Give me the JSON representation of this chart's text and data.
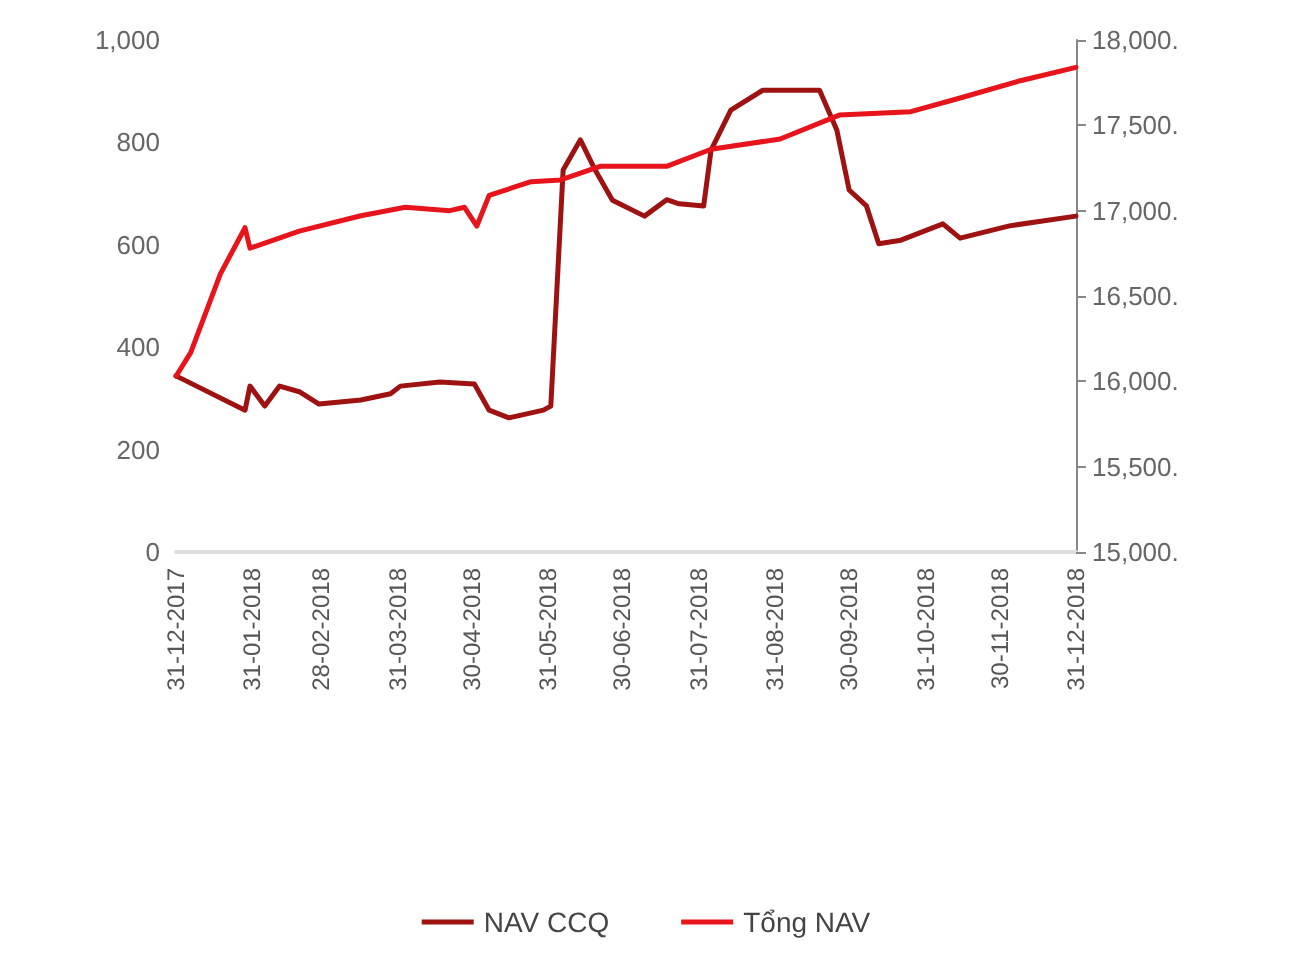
{
  "chart_data": {
    "type": "line",
    "xlim": [
      "2017-12-31",
      "2018-12-31"
    ],
    "xticks": [
      {
        "value": "2017-12-31",
        "label": "31-12-2017"
      },
      {
        "value": "2018-01-31",
        "label": "31-01-2018"
      },
      {
        "value": "2018-02-28",
        "label": "28-02-2018"
      },
      {
        "value": "2018-03-31",
        "label": "31-03-2018"
      },
      {
        "value": "2018-04-30",
        "label": "30-04-2018"
      },
      {
        "value": "2018-05-31",
        "label": "31-05-2018"
      },
      {
        "value": "2018-06-30",
        "label": "30-06-2018"
      },
      {
        "value": "2018-07-31",
        "label": "31-07-2018"
      },
      {
        "value": "2018-08-31",
        "label": "31-08-2018"
      },
      {
        "value": "2018-09-30",
        "label": "30-09-2018"
      },
      {
        "value": "2018-10-31",
        "label": "31-10-2018"
      },
      {
        "value": "2018-11-30",
        "label": "30-11-2018"
      },
      {
        "value": "2018-12-31",
        "label": "31-12-2018"
      }
    ],
    "ylim": [
      0,
      1000
    ],
    "yticks": [
      0,
      200,
      400,
      600,
      800,
      {
        "value": 1000,
        "label": "1,000"
      }
    ],
    "y2lim": [
      15000,
      18000
    ],
    "y2ticks": [
      {
        "value": 15000,
        "label": "15,000."
      },
      {
        "value": 15500,
        "label": "15,500."
      },
      {
        "value": 16000,
        "label": "16,000."
      },
      {
        "value": 16500,
        "label": "16,500."
      },
      {
        "value": 17000,
        "label": "17,000."
      },
      {
        "value": 17500,
        "label": "17,500."
      },
      {
        "value": 18000,
        "label": "18,000."
      }
    ],
    "series": [
      {
        "name": "NAV CCQ",
        "color": "#9e1212",
        "x": [
          "2017-12-31",
          "2018-01-28",
          "2018-01-30",
          "2018-02-05",
          "2018-02-11",
          "2018-02-19",
          "2018-02-27",
          "2018-03-16",
          "2018-03-28",
          "2018-04-01",
          "2018-04-17",
          "2018-05-01",
          "2018-05-07",
          "2018-05-15",
          "2018-05-29",
          "2018-06-01",
          "2018-06-06",
          "2018-06-13",
          "2018-06-19",
          "2018-06-26",
          "2018-07-09",
          "2018-07-18",
          "2018-07-23",
          "2018-08-02",
          "2018-08-05",
          "2018-08-13",
          "2018-08-26",
          "2018-09-18",
          "2018-09-25",
          "2018-09-30",
          "2018-10-07",
          "2018-10-12",
          "2018-10-21",
          "2018-11-07",
          "2018-11-14",
          "2018-12-04",
          "2018-12-31"
        ],
        "values": [
          344,
          277,
          324,
          285,
          324,
          313,
          289,
          297,
          309,
          324,
          332,
          328,
          277,
          262,
          277,
          285,
          746,
          805,
          746,
          687,
          656,
          688,
          680,
          676,
          785,
          863,
          902,
          902,
          824,
          707,
          676,
          602,
          609,
          641,
          613,
          637,
          656
        ]
      },
      {
        "name": "Tổng NAV",
        "color": "#e8141c",
        "axis": "y2",
        "x": [
          "2017-12-31",
          "2018-01-06",
          "2018-01-18",
          "2018-01-28",
          "2018-01-30",
          "2018-02-19",
          "2018-03-16",
          "2018-04-03",
          "2018-04-21",
          "2018-04-27",
          "2018-05-02",
          "2018-05-07",
          "2018-05-24",
          "2018-06-05",
          "2018-06-21",
          "2018-07-18",
          "2018-08-05",
          "2018-09-02",
          "2018-09-26",
          "2018-10-25",
          "2018-11-14",
          "2018-12-08",
          "2018-12-31"
        ],
        "values": [
          16030,
          16170,
          16630,
          16900,
          16780,
          16880,
          16970,
          17020,
          17000,
          17020,
          16910,
          17090,
          17170,
          17180,
          17260,
          17260,
          17360,
          17420,
          17560,
          17580,
          17660,
          17760,
          17840
        ]
      }
    ],
    "grid": false,
    "legend": "bottom",
    "marker": "none"
  }
}
